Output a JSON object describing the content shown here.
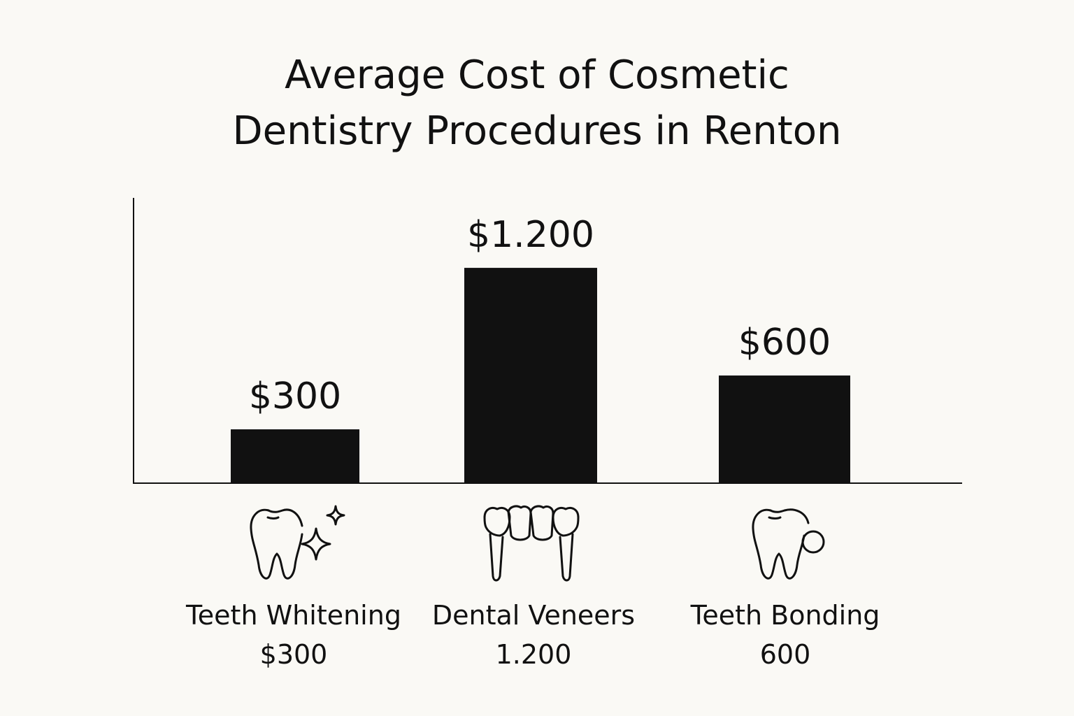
{
  "chart_data": {
    "type": "bar",
    "title": "Average Cost of Cosmetic Dentistry Procedures in Renton",
    "title_lines": [
      "Average Cost of Cosmetic",
      "Dentistry Procedures in Renton"
    ],
    "categories": [
      "Teeth Whitening",
      "Dental Veneers",
      "Teeth Bonding"
    ],
    "values": [
      300,
      1200,
      600
    ],
    "data_labels": [
      "$300",
      "$1.200",
      "$600"
    ],
    "category_value_labels": [
      "$300",
      "1.200",
      "600"
    ],
    "icons": [
      "sparkling-tooth-icon",
      "veneers-icon",
      "bonding-tooth-icon"
    ],
    "xlabel": "",
    "ylabel": "",
    "ylim": [
      0,
      1590
    ],
    "grid": false,
    "legend": "none",
    "colors": {
      "bar": "#111111",
      "axis": "#111111",
      "background": "#faf9f5"
    }
  }
}
